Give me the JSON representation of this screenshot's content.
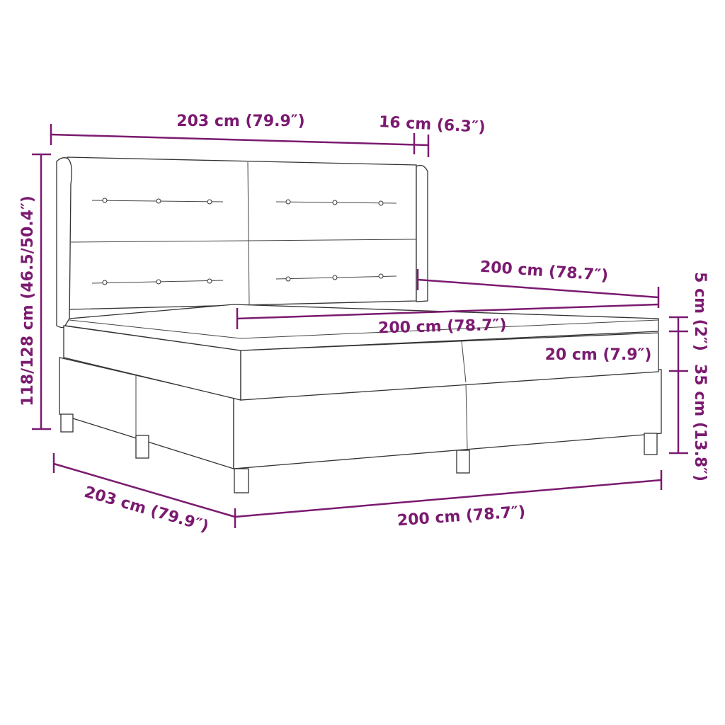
{
  "accent_color": "#7b1a70",
  "dimensions": {
    "headboard_width": "203 cm (79.9″)",
    "headboard_wing_depth": "16 cm (6.3″)",
    "headboard_height": "118/128 cm (46.5/50.4″)",
    "mattress_length": "200 cm (78.7″)",
    "topper_height": "5 cm (2″)",
    "mattress_width": "200 cm (78.7″)",
    "mattress_height": "20 cm (7.9″)",
    "base_height": "35 cm (13.8″)",
    "overall_length": "203 cm (79.9″)",
    "overall_width": "200 cm (78.7″)"
  }
}
